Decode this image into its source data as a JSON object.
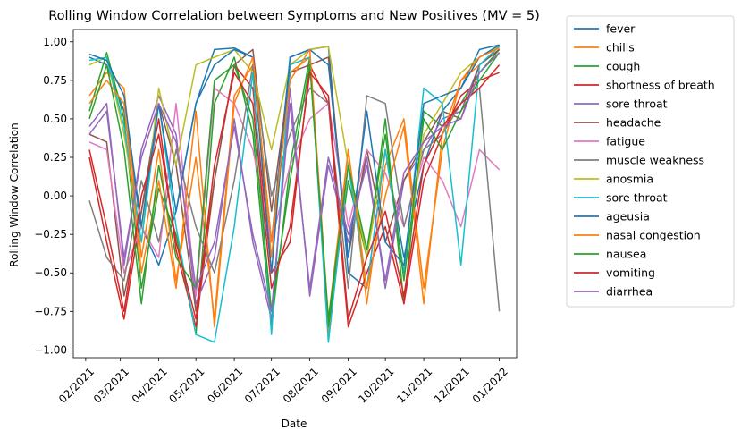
{
  "chart_data": {
    "type": "line",
    "title": "Rolling Window Correlation between Symptoms and New Positives (MV = 5)",
    "xlabel": "Date",
    "ylabel": "Rolling Window Correlation",
    "x_ticks": [
      "02/2021",
      "03/2021",
      "04/2021",
      "05/2021",
      "06/2021",
      "07/2021",
      "08/2021",
      "09/2021",
      "10/2021",
      "11/2021",
      "12/2021",
      "01/2022"
    ],
    "y_ticks": [
      "1.00",
      "0.75",
      "0.50",
      "0.25",
      "0.00",
      "−0.25",
      "−0.50",
      "−0.75",
      "−1.00"
    ],
    "ylim": [
      -1.05,
      1.08
    ],
    "xlim": [
      "2021-01-22",
      "2022-01-15"
    ],
    "legend_position": "outside-right",
    "series": [
      {
        "name": "fever",
        "color": "#1f77b4",
        "x": [
          "2021-02-04",
          "2021-02-18",
          "2021-03-04",
          "2021-03-18",
          "2021-04-01",
          "2021-04-15",
          "2021-05-01",
          "2021-05-16",
          "2021-06-01",
          "2021-06-16",
          "2021-07-01",
          "2021-07-16",
          "2021-08-01",
          "2021-08-16",
          "2021-09-01",
          "2021-09-16",
          "2021-10-01",
          "2021-10-16",
          "2021-11-01",
          "2021-11-16",
          "2021-12-01",
          "2021-12-16",
          "2022-01-01"
        ],
        "values": [
          0.9,
          0.85,
          0.55,
          -0.2,
          -0.45,
          -0.1,
          0.6,
          0.95,
          0.96,
          0.9,
          -0.3,
          0.9,
          0.95,
          0.97,
          -0.5,
          -0.6,
          0.3,
          -0.4,
          0.2,
          0.55,
          0.7,
          0.95,
          0.98
        ]
      },
      {
        "name": "chills",
        "color": "#ff7f0e",
        "x": [
          "2021-02-04",
          "2021-02-18",
          "2021-03-04",
          "2021-03-18",
          "2021-04-01",
          "2021-04-15",
          "2021-05-01",
          "2021-05-16",
          "2021-06-01",
          "2021-06-16",
          "2021-07-01",
          "2021-07-16",
          "2021-08-01",
          "2021-08-16",
          "2021-09-01",
          "2021-09-16",
          "2021-10-01",
          "2021-10-16",
          "2021-11-01",
          "2021-11-16",
          "2021-12-01",
          "2021-12-16",
          "2022-01-01"
        ],
        "values": [
          0.65,
          0.8,
          0.7,
          -0.4,
          0.3,
          -0.55,
          0.25,
          -0.8,
          0.65,
          0.85,
          -0.4,
          0.8,
          0.9,
          -0.9,
          0.3,
          -0.7,
          0.2,
          0.5,
          -0.6,
          0.3,
          0.75,
          0.85,
          0.97
        ]
      },
      {
        "name": "cough",
        "color": "#2ca02c",
        "x": [
          "2021-02-04",
          "2021-02-18",
          "2021-03-04",
          "2021-03-18",
          "2021-04-01",
          "2021-04-15",
          "2021-05-01",
          "2021-05-16",
          "2021-06-01",
          "2021-06-16",
          "2021-07-01",
          "2021-07-16",
          "2021-08-01",
          "2021-08-16",
          "2021-09-01",
          "2021-09-16",
          "2021-10-01",
          "2021-10-16",
          "2021-11-01",
          "2021-11-16",
          "2021-12-01",
          "2021-12-16",
          "2022-01-01"
        ],
        "values": [
          0.55,
          0.93,
          0.5,
          -0.6,
          0.05,
          -0.25,
          -0.9,
          0.6,
          0.9,
          0.4,
          -0.85,
          0.2,
          0.9,
          -0.85,
          0.1,
          -0.4,
          0.5,
          -0.7,
          0.55,
          0.45,
          0.6,
          0.8,
          0.95
        ]
      },
      {
        "name": "shortness of breath",
        "color": "#d62728",
        "x": [
          "2021-02-04",
          "2021-02-18",
          "2021-03-04",
          "2021-03-18",
          "2021-04-01",
          "2021-04-15",
          "2021-05-01",
          "2021-05-16",
          "2021-06-01",
          "2021-06-16",
          "2021-07-01",
          "2021-07-16",
          "2021-08-01",
          "2021-08-16",
          "2021-09-01",
          "2021-09-16",
          "2021-10-01",
          "2021-10-16",
          "2021-11-01",
          "2021-11-16",
          "2021-12-01",
          "2021-12-16",
          "2022-01-01"
        ],
        "values": [
          0.25,
          -0.3,
          -0.8,
          -0.1,
          0.5,
          -0.35,
          -0.85,
          0.1,
          0.85,
          0.7,
          -0.5,
          -0.3,
          0.85,
          0.6,
          -0.85,
          -0.5,
          -0.2,
          -0.7,
          0.1,
          0.4,
          0.65,
          0.75,
          0.8
        ]
      },
      {
        "name": "sore throat",
        "color": "#9467bd",
        "x": [
          "2021-02-04",
          "2021-02-18",
          "2021-03-04",
          "2021-03-18",
          "2021-04-01",
          "2021-04-15",
          "2021-05-01",
          "2021-05-16",
          "2021-06-01",
          "2021-06-16",
          "2021-07-01",
          "2021-07-16",
          "2021-08-01",
          "2021-08-16",
          "2021-09-01",
          "2021-09-16",
          "2021-10-01",
          "2021-10-16",
          "2021-11-01",
          "2021-11-16",
          "2021-12-01",
          "2021-12-16",
          "2022-01-01"
        ],
        "values": [
          0.45,
          0.6,
          -0.45,
          0.3,
          0.65,
          0.4,
          -0.7,
          -0.4,
          0.5,
          -0.3,
          -0.8,
          0.7,
          -0.65,
          0.2,
          -0.3,
          0.25,
          -0.6,
          0.1,
          0.3,
          0.5,
          0.55,
          0.85,
          0.95
        ]
      },
      {
        "name": "headache",
        "color": "#8c564b",
        "x": [
          "2021-02-04",
          "2021-02-18",
          "2021-03-04",
          "2021-03-18",
          "2021-04-01",
          "2021-04-15",
          "2021-05-01",
          "2021-05-16",
          "2021-06-01",
          "2021-06-16",
          "2021-07-01",
          "2021-07-16",
          "2021-08-01",
          "2021-08-16",
          "2021-09-01",
          "2021-09-16",
          "2021-10-01",
          "2021-10-16",
          "2021-11-01",
          "2021-11-16",
          "2021-12-01",
          "2021-12-16",
          "2022-01-01"
        ],
        "values": [
          0.4,
          0.35,
          -0.65,
          -0.1,
          0.6,
          0.2,
          -0.75,
          0.1,
          0.85,
          0.95,
          -0.1,
          0.8,
          0.85,
          0.9,
          -0.4,
          0.3,
          -0.3,
          0.1,
          0.35,
          0.55,
          0.5,
          0.85,
          0.95
        ]
      },
      {
        "name": "fatigue",
        "color": "#e377c2",
        "x": [
          "2021-02-04",
          "2021-02-18",
          "2021-03-04",
          "2021-03-18",
          "2021-04-01",
          "2021-04-15",
          "2021-05-01",
          "2021-05-16",
          "2021-06-01",
          "2021-06-16",
          "2021-07-01",
          "2021-07-16",
          "2021-08-01",
          "2021-08-16",
          "2021-09-01",
          "2021-09-16",
          "2021-10-01",
          "2021-10-16",
          "2021-11-01",
          "2021-11-16",
          "2021-12-01",
          "2021-12-16",
          "2022-01-01"
        ],
        "values": [
          0.35,
          0.3,
          -0.5,
          -0.2,
          -0.4,
          0.6,
          -0.65,
          0.7,
          0.6,
          0.3,
          -0.3,
          0.2,
          0.5,
          0.6,
          -0.2,
          0.3,
          0.15,
          -0.2,
          0.25,
          0.1,
          -0.2,
          0.3,
          0.17
        ]
      },
      {
        "name": "muscle weakness",
        "color": "#7f7f7f",
        "x": [
          "2021-02-04",
          "2021-02-18",
          "2021-03-04",
          "2021-03-18",
          "2021-04-01",
          "2021-04-15",
          "2021-05-01",
          "2021-05-16",
          "2021-06-01",
          "2021-06-16",
          "2021-07-01",
          "2021-07-16",
          "2021-08-01",
          "2021-08-16",
          "2021-09-01",
          "2021-09-16",
          "2021-10-01",
          "2021-10-16",
          "2021-11-01",
          "2021-11-16",
          "2021-12-01",
          "2021-12-16",
          "2022-01-01"
        ],
        "values": [
          -0.03,
          -0.4,
          -0.55,
          0.1,
          -0.3,
          0.3,
          -0.2,
          -0.5,
          0.1,
          0.85,
          0.0,
          0.4,
          0.7,
          0.6,
          -0.6,
          0.65,
          0.6,
          -0.2,
          0.3,
          0.4,
          0.6,
          0.7,
          -0.75
        ]
      },
      {
        "name": "anosmia",
        "color": "#bcbd22",
        "x": [
          "2021-02-04",
          "2021-02-18",
          "2021-03-04",
          "2021-03-18",
          "2021-04-01",
          "2021-04-15",
          "2021-05-01",
          "2021-05-16",
          "2021-06-01",
          "2021-06-16",
          "2021-07-01",
          "2021-07-16",
          "2021-08-01",
          "2021-08-16",
          "2021-09-01",
          "2021-09-16",
          "2021-10-01",
          "2021-10-16",
          "2021-11-01",
          "2021-11-16",
          "2021-12-01",
          "2021-12-16",
          "2022-01-01"
        ],
        "values": [
          0.85,
          0.9,
          0.4,
          -0.3,
          0.7,
          0.2,
          0.85,
          0.9,
          0.95,
          0.8,
          0.3,
          0.85,
          0.95,
          0.97,
          0.2,
          -0.4,
          0.3,
          -0.5,
          0.4,
          0.6,
          0.8,
          0.9,
          0.97
        ]
      },
      {
        "name": "sore throat",
        "color": "#17becf",
        "x": [
          "2021-02-04",
          "2021-02-18",
          "2021-03-04",
          "2021-03-18",
          "2021-04-01",
          "2021-04-15",
          "2021-05-01",
          "2021-05-16",
          "2021-06-01",
          "2021-06-16",
          "2021-07-01",
          "2021-07-16",
          "2021-08-01",
          "2021-08-16",
          "2021-09-01",
          "2021-09-16",
          "2021-10-01",
          "2021-10-16",
          "2021-11-01",
          "2021-11-16",
          "2021-12-01",
          "2021-12-16",
          "2022-01-01"
        ],
        "values": [
          0.88,
          0.9,
          0.45,
          -0.3,
          0.6,
          -0.2,
          -0.9,
          -0.95,
          -0.2,
          0.8,
          -0.9,
          0.85,
          0.9,
          -0.95,
          0.2,
          -0.6,
          0.3,
          -0.5,
          0.7,
          0.6,
          -0.45,
          0.85,
          0.97
        ]
      },
      {
        "name": "ageusia",
        "color": "#1f77b4",
        "x": [
          "2021-02-04",
          "2021-02-18",
          "2021-03-04",
          "2021-03-18",
          "2021-04-01",
          "2021-04-15",
          "2021-05-01",
          "2021-05-16",
          "2021-06-01",
          "2021-06-16",
          "2021-07-01",
          "2021-07-16",
          "2021-08-01",
          "2021-08-16",
          "2021-09-01",
          "2021-09-16",
          "2021-10-01",
          "2021-10-16",
          "2021-11-01",
          "2021-11-16",
          "2021-12-01",
          "2021-12-16",
          "2022-01-01"
        ],
        "values": [
          0.92,
          0.88,
          0.65,
          -0.2,
          0.6,
          -0.1,
          0.6,
          0.85,
          0.95,
          0.9,
          -0.5,
          0.9,
          0.95,
          0.85,
          -0.4,
          0.55,
          -0.3,
          -0.45,
          0.6,
          0.65,
          0.7,
          0.9,
          0.98
        ]
      },
      {
        "name": "nasal congestion",
        "color": "#ff7f0e",
        "x": [
          "2021-02-04",
          "2021-02-18",
          "2021-03-04",
          "2021-03-18",
          "2021-04-01",
          "2021-04-15",
          "2021-05-01",
          "2021-05-16",
          "2021-06-01",
          "2021-06-16",
          "2021-07-01",
          "2021-07-16",
          "2021-08-01",
          "2021-08-16",
          "2021-09-01",
          "2021-09-16",
          "2021-10-01",
          "2021-10-16",
          "2021-11-01",
          "2021-11-16",
          "2021-12-01",
          "2021-12-16",
          "2022-01-01"
        ],
        "values": [
          0.6,
          0.75,
          0.6,
          -0.5,
          0.1,
          -0.6,
          0.55,
          -0.85,
          0.6,
          0.9,
          -0.3,
          0.75,
          0.95,
          -0.8,
          0.3,
          -0.6,
          0.0,
          0.45,
          -0.7,
          0.4,
          0.75,
          0.9,
          0.96
        ]
      },
      {
        "name": "nausea",
        "color": "#2ca02c",
        "x": [
          "2021-02-04",
          "2021-02-18",
          "2021-03-04",
          "2021-03-18",
          "2021-04-01",
          "2021-04-15",
          "2021-05-01",
          "2021-05-16",
          "2021-06-01",
          "2021-06-16",
          "2021-07-01",
          "2021-07-16",
          "2021-08-01",
          "2021-08-16",
          "2021-09-01",
          "2021-09-16",
          "2021-10-01",
          "2021-10-16",
          "2021-11-01",
          "2021-11-16",
          "2021-12-01",
          "2021-12-16",
          "2022-01-01"
        ],
        "values": [
          0.5,
          0.85,
          0.3,
          -0.7,
          0.2,
          -0.4,
          -0.6,
          0.75,
          0.85,
          0.5,
          -0.75,
          0.1,
          0.85,
          -0.8,
          0.2,
          -0.35,
          0.4,
          -0.55,
          0.5,
          0.3,
          0.55,
          0.75,
          0.93
        ]
      },
      {
        "name": "vomiting",
        "color": "#d62728",
        "x": [
          "2021-02-04",
          "2021-02-18",
          "2021-03-04",
          "2021-03-18",
          "2021-04-01",
          "2021-04-15",
          "2021-05-01",
          "2021-05-16",
          "2021-06-01",
          "2021-06-16",
          "2021-07-01",
          "2021-07-16",
          "2021-08-01",
          "2021-08-16",
          "2021-09-01",
          "2021-09-16",
          "2021-10-01",
          "2021-10-16",
          "2021-11-01",
          "2021-11-16",
          "2021-12-01",
          "2021-12-16",
          "2022-01-01"
        ],
        "values": [
          0.3,
          -0.2,
          -0.75,
          0.0,
          0.4,
          -0.3,
          -0.8,
          0.2,
          0.8,
          0.6,
          -0.6,
          -0.2,
          0.8,
          0.65,
          -0.8,
          -0.4,
          -0.1,
          -0.65,
          0.2,
          0.45,
          0.6,
          0.7,
          0.85
        ]
      },
      {
        "name": "diarrhea",
        "color": "#9467bd",
        "x": [
          "2021-02-04",
          "2021-02-18",
          "2021-03-04",
          "2021-03-18",
          "2021-04-01",
          "2021-04-15",
          "2021-05-01",
          "2021-05-16",
          "2021-06-01",
          "2021-06-16",
          "2021-07-01",
          "2021-07-16",
          "2021-08-01",
          "2021-08-16",
          "2021-09-01",
          "2021-09-16",
          "2021-10-01",
          "2021-10-16",
          "2021-11-01",
          "2021-11-16",
          "2021-12-01",
          "2021-12-16",
          "2022-01-01"
        ],
        "values": [
          0.4,
          0.55,
          -0.4,
          0.25,
          0.6,
          0.35,
          -0.6,
          -0.3,
          0.45,
          -0.25,
          -0.75,
          0.6,
          -0.6,
          0.25,
          -0.25,
          0.2,
          -0.55,
          0.15,
          0.35,
          0.45,
          0.5,
          0.8,
          0.93
        ]
      }
    ]
  }
}
